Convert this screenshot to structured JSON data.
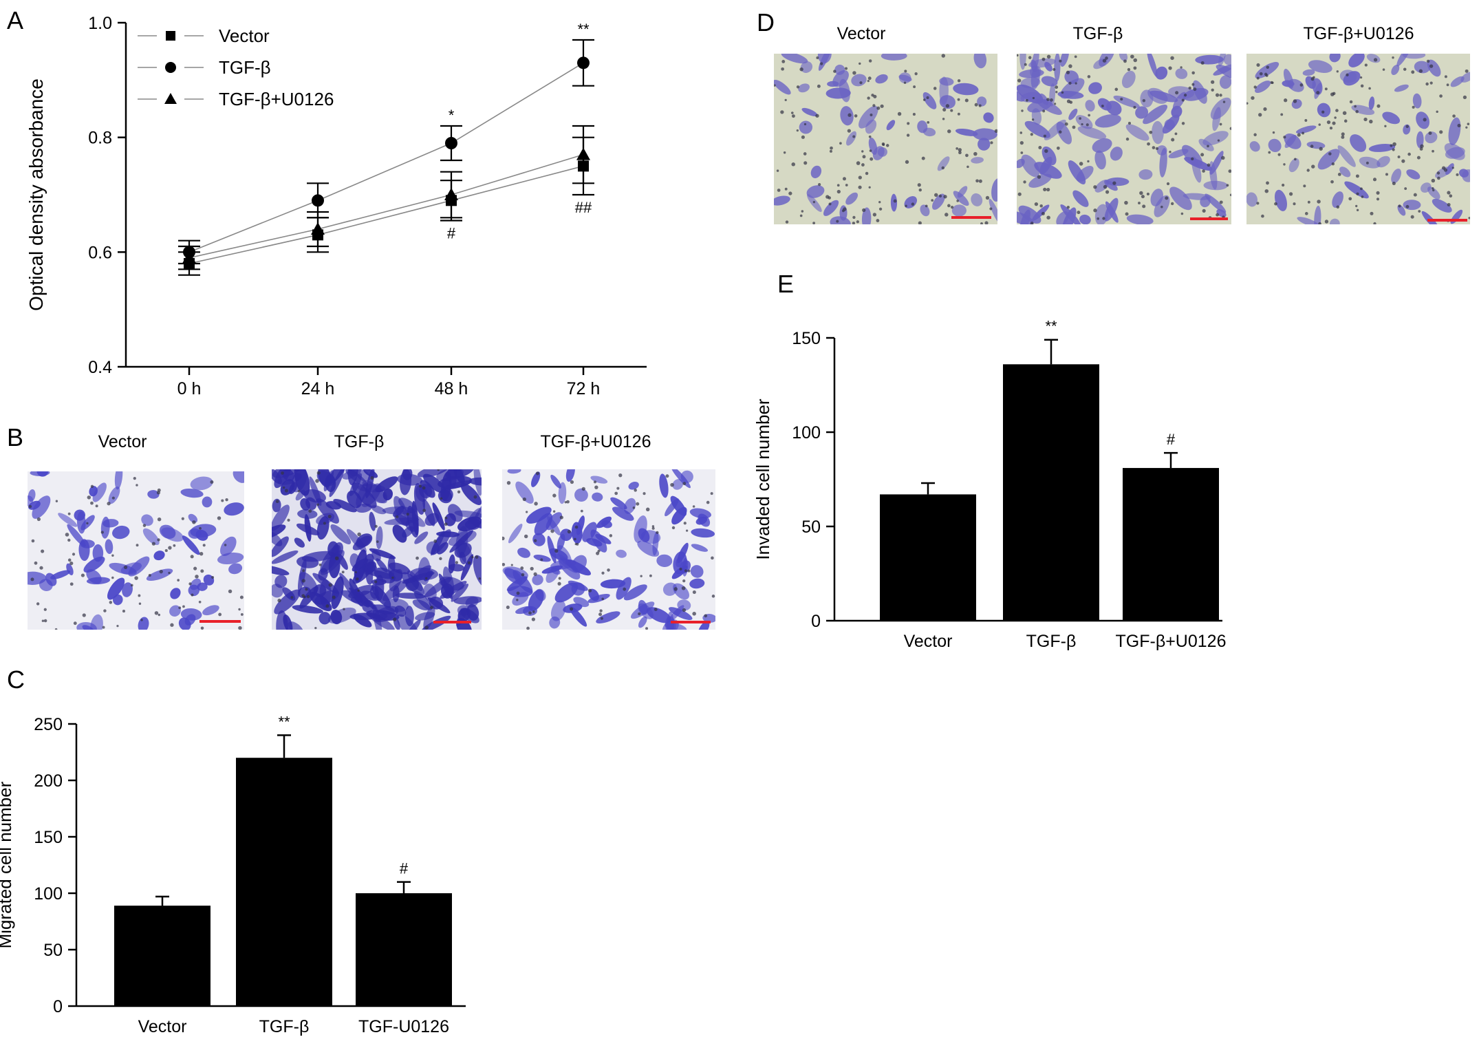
{
  "panel_letters": [
    "A",
    "B",
    "C",
    "D",
    "E"
  ],
  "colors": {
    "marker": "#000000",
    "series_line": "#888888",
    "bar_fill": "#000000",
    "scale_bar": "#e8202a",
    "stain": "#4a46c8",
    "micrograph_bg_b": "#eeeef4",
    "micrograph_bg_d": "#d6d9c4"
  },
  "panel_b": {
    "labels": [
      "Vector",
      "TGF-β",
      "TGF-β+U0126"
    ]
  },
  "panel_d": {
    "labels": [
      "Vector",
      "TGF-β",
      "TGF-β+U0126"
    ]
  },
  "chart_data": [
    {
      "panel": "A",
      "type": "line",
      "ylabel": "Optical density absorbance",
      "xlabel": "",
      "categories": [
        "0 h",
        "24 h",
        "48 h",
        "72 h"
      ],
      "ylim": [
        0.4,
        1.0
      ],
      "yticks": [
        0.4,
        0.6,
        0.8,
        1.0
      ],
      "ytick_labels": [
        "0.4",
        "0.6",
        "0.8",
        "1.0"
      ],
      "legend_position": "top-left",
      "series": [
        {
          "name": "Vector",
          "marker": "square",
          "values": [
            0.58,
            0.63,
            0.69,
            0.75
          ],
          "errors": [
            0.02,
            0.03,
            0.035,
            0.05
          ]
        },
        {
          "name": "TGF-β",
          "marker": "circle",
          "values": [
            0.6,
            0.69,
            0.79,
            0.93
          ],
          "errors": [
            0.02,
            0.03,
            0.03,
            0.04
          ]
        },
        {
          "name": "TGF-β+U0126",
          "marker": "triangle",
          "values": [
            0.59,
            0.64,
            0.7,
            0.77
          ],
          "errors": [
            0.02,
            0.03,
            0.04,
            0.05
          ]
        }
      ],
      "annotations": [
        {
          "category": "48 h",
          "text": "*",
          "where": "above",
          "value": 0.82
        },
        {
          "category": "72 h",
          "text": "**",
          "where": "above",
          "value": 0.97
        },
        {
          "category": "48 h",
          "text": "#",
          "where": "below",
          "value": 0.655
        },
        {
          "category": "72 h",
          "text": "##",
          "where": "below",
          "value": 0.7
        }
      ]
    },
    {
      "panel": "C",
      "type": "bar",
      "ylabel": "Migrated cell number",
      "xlabel": "",
      "categories": [
        "Vector",
        "TGF-β",
        "TGF-U0126"
      ],
      "values": [
        89,
        220,
        100
      ],
      "errors": [
        8,
        20,
        10
      ],
      "ylim": [
        0,
        250
      ],
      "yticks": [
        0,
        50,
        100,
        150,
        200,
        250
      ],
      "bar_annotations": [
        "",
        "**",
        "#"
      ]
    },
    {
      "panel": "E",
      "type": "bar",
      "ylabel": "Invaded cell number",
      "xlabel": "",
      "categories": [
        "Vector",
        "TGF-β",
        "TGF-β+U0126"
      ],
      "values": [
        67,
        136,
        81
      ],
      "errors": [
        6,
        13,
        8
      ],
      "ylim": [
        0,
        150
      ],
      "yticks": [
        0,
        50,
        100,
        150
      ],
      "bar_annotations": [
        "",
        "**",
        "#"
      ]
    }
  ]
}
